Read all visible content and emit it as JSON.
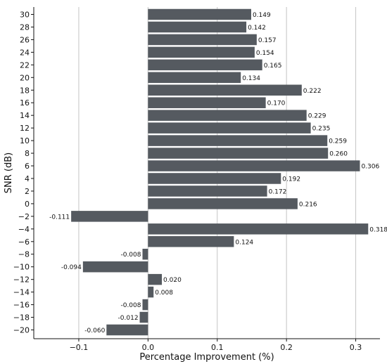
{
  "chart_data": {
    "type": "bar",
    "orientation": "horizontal",
    "title": "",
    "xlabel": "Percentage Improvement (%)",
    "ylabel": "SNR (dB)",
    "xlim": [
      -0.165,
      0.335
    ],
    "x_ticks": [
      -0.1,
      0.0,
      0.1,
      0.2,
      0.3
    ],
    "x_tick_labels": [
      "−0.1",
      "0.0",
      "0.1",
      "0.2",
      "0.3"
    ],
    "grid": "vertical",
    "bar_color": "#555a60",
    "categories": [
      "30",
      "28",
      "26",
      "24",
      "22",
      "20",
      "18",
      "16",
      "14",
      "12",
      "10",
      "8",
      "6",
      "4",
      "2",
      "0",
      "−2",
      "−4",
      "−6",
      "−8",
      "−10",
      "−12",
      "−14",
      "−16",
      "−18",
      "−20"
    ],
    "values": [
      0.149,
      0.142,
      0.157,
      0.154,
      0.165,
      0.134,
      0.222,
      0.17,
      0.229,
      0.235,
      0.259,
      0.26,
      0.306,
      0.192,
      0.172,
      0.216,
      -0.111,
      0.318,
      0.124,
      -0.008,
      -0.094,
      0.02,
      0.008,
      -0.008,
      -0.012,
      -0.06
    ],
    "value_labels": [
      "0.149",
      "0.142",
      "0.157",
      "0.154",
      "0.165",
      "0.134",
      "0.222",
      "0.170",
      "0.229",
      "0.235",
      "0.259",
      "0.260",
      "0.306",
      "0.192",
      "0.172",
      "0.216",
      "-0.111",
      "0.318",
      "0.124",
      "-0.008",
      "-0.094",
      "0.020",
      "0.008",
      "-0.008",
      "-0.012",
      "-0.060"
    ]
  }
}
